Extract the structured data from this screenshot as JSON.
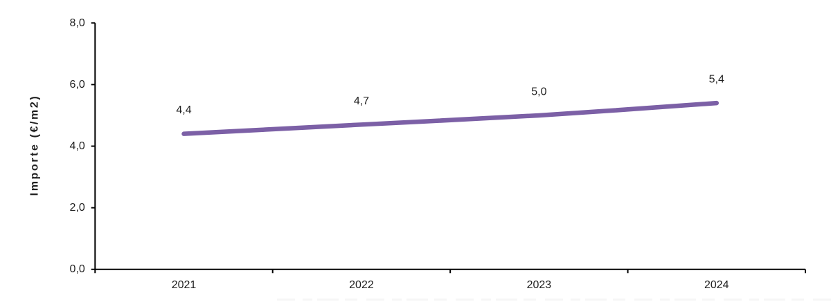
{
  "chart_data": {
    "type": "line",
    "categories": [
      "2021",
      "2022",
      "2023",
      "2024"
    ],
    "series": [
      {
        "name": "Importe",
        "values": [
          4.4,
          4.7,
          5.0,
          5.4
        ],
        "data_labels": [
          "4,4",
          "4,7",
          "5,0",
          "5,4"
        ]
      }
    ],
    "title": "",
    "xlabel": "",
    "ylabel": "Importe (€/m2)",
    "ylim": [
      0,
      8
    ],
    "ytick_step": 2,
    "ytick_labels": [
      "0,0",
      "2,0",
      "4,0",
      "6,0",
      "8,0"
    ],
    "grid": false,
    "legend_position": "none",
    "line_style": "smooth",
    "colors": {
      "line": "#7C60A6",
      "text": "#1F1F1F",
      "axis": "#000000",
      "background": "#FFFFFF"
    }
  }
}
